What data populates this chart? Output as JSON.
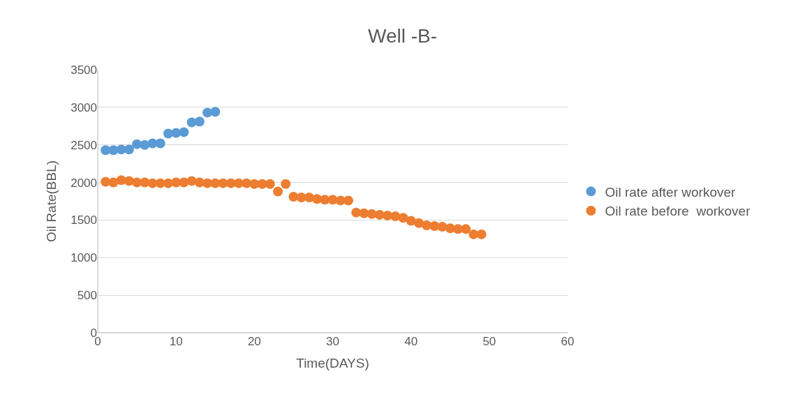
{
  "chart_data": {
    "type": "scatter",
    "title": "Well -B-",
    "xlabel": "Time(DAYS)",
    "ylabel": "Oil Rate(BBL)",
    "xlim": [
      0,
      60
    ],
    "xticks": [
      0,
      10,
      20,
      30,
      40,
      50,
      60
    ],
    "ylim": [
      0,
      3500
    ],
    "yticks": [
      0,
      500,
      1000,
      1500,
      2000,
      2500,
      3000,
      3500
    ],
    "grid": "y",
    "legend": "right",
    "marker": "circle",
    "series": [
      {
        "name": "Oil rate after workover",
        "color": "#5b9bd5",
        "x": [
          1,
          2,
          3,
          4,
          5,
          6,
          7,
          8,
          9,
          10,
          11,
          12,
          13,
          14,
          15
        ],
        "values": [
          2430,
          2430,
          2440,
          2440,
          2510,
          2500,
          2520,
          2520,
          2650,
          2660,
          2670,
          2800,
          2810,
          2930,
          2940
        ]
      },
      {
        "name": "Oil rate before  workover",
        "color": "#ed7d31",
        "x": [
          1,
          2,
          3,
          4,
          5,
          6,
          7,
          8,
          9,
          10,
          11,
          12,
          13,
          14,
          15,
          16,
          17,
          18,
          19,
          20,
          21,
          22,
          23,
          24,
          25,
          26,
          27,
          28,
          29,
          30,
          31,
          32,
          33,
          34,
          35,
          36,
          37,
          38,
          39,
          40,
          41,
          42,
          43,
          44,
          45,
          46,
          47,
          48,
          49
        ],
        "values": [
          2010,
          2000,
          2030,
          2020,
          2000,
          2000,
          1990,
          1990,
          1990,
          2000,
          2000,
          2020,
          2000,
          1990,
          1990,
          1990,
          1990,
          1990,
          1990,
          1980,
          1980,
          1980,
          1880,
          1980,
          1810,
          1800,
          1800,
          1780,
          1770,
          1770,
          1760,
          1760,
          1600,
          1590,
          1580,
          1570,
          1560,
          1550,
          1530,
          1490,
          1460,
          1430,
          1420,
          1410,
          1390,
          1380,
          1380,
          1310,
          1310
        ]
      }
    ]
  }
}
